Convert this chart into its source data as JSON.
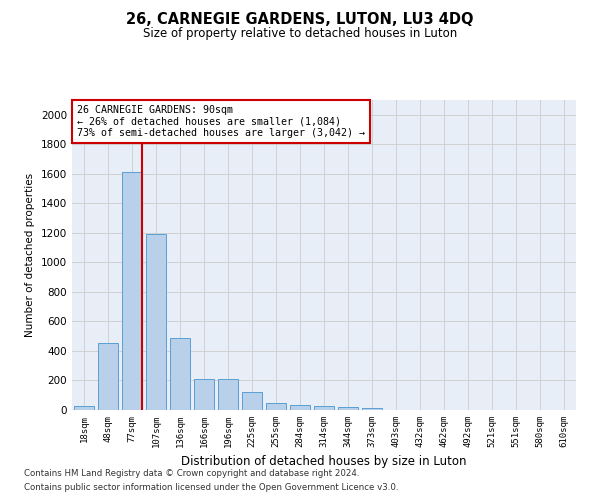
{
  "title": "26, CARNEGIE GARDENS, LUTON, LU3 4DQ",
  "subtitle": "Size of property relative to detached houses in Luton",
  "xlabel": "Distribution of detached houses by size in Luton",
  "ylabel": "Number of detached properties",
  "categories": [
    "18sqm",
    "48sqm",
    "77sqm",
    "107sqm",
    "136sqm",
    "166sqm",
    "196sqm",
    "225sqm",
    "255sqm",
    "284sqm",
    "314sqm",
    "344sqm",
    "373sqm",
    "403sqm",
    "432sqm",
    "462sqm",
    "492sqm",
    "521sqm",
    "551sqm",
    "580sqm",
    "610sqm"
  ],
  "values": [
    30,
    455,
    1610,
    1195,
    490,
    210,
    210,
    125,
    48,
    35,
    25,
    20,
    14,
    0,
    0,
    0,
    0,
    0,
    0,
    0,
    0
  ],
  "bar_color": "#b8d0ea",
  "bar_edge_color": "#5a9fd4",
  "property_line_label": "26 CARNEGIE GARDENS: 90sqm",
  "annotation_line1": "← 26% of detached houses are smaller (1,084)",
  "annotation_line2": "73% of semi-detached houses are larger (3,042) →",
  "annotation_box_color": "#ffffff",
  "annotation_box_edge": "#cc0000",
  "vline_color": "#cc0000",
  "ylim": [
    0,
    2100
  ],
  "yticks": [
    0,
    200,
    400,
    600,
    800,
    1000,
    1200,
    1400,
    1600,
    1800,
    2000
  ],
  "grid_color": "#cccccc",
  "background_color": "#e8eef8",
  "footer_line1": "Contains HM Land Registry data © Crown copyright and database right 2024.",
  "footer_line2": "Contains public sector information licensed under the Open Government Licence v3.0."
}
